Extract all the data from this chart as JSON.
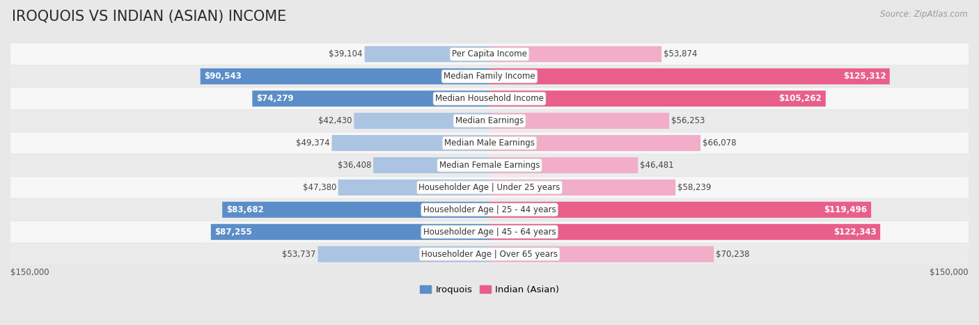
{
  "title": "IROQUOIS VS INDIAN (ASIAN) INCOME",
  "source": "Source: ZipAtlas.com",
  "categories": [
    "Per Capita Income",
    "Median Family Income",
    "Median Household Income",
    "Median Earnings",
    "Median Male Earnings",
    "Median Female Earnings",
    "Householder Age | Under 25 years",
    "Householder Age | 25 - 44 years",
    "Householder Age | 45 - 64 years",
    "Householder Age | Over 65 years"
  ],
  "iroquois_values": [
    39104,
    90543,
    74279,
    42430,
    49374,
    36408,
    47380,
    83682,
    87255,
    53737
  ],
  "indian_values": [
    53874,
    125312,
    105262,
    56253,
    66078,
    46481,
    58239,
    119496,
    122343,
    70238
  ],
  "iroquois_labels": [
    "$39,104",
    "$90,543",
    "$74,279",
    "$42,430",
    "$49,374",
    "$36,408",
    "$47,380",
    "$83,682",
    "$87,255",
    "$53,737"
  ],
  "indian_labels": [
    "$53,874",
    "$125,312",
    "$105,262",
    "$56,253",
    "$66,078",
    "$46,481",
    "$58,239",
    "$119,496",
    "$122,343",
    "$70,238"
  ],
  "iroquois_color_light": "#aac4e2",
  "iroquois_color_dark": "#5b8ec9",
  "indian_color_light": "#f2aec8",
  "indian_color_dark": "#e8608a",
  "max_value": 150000,
  "bg_color": "#e8e8e8",
  "row_bg_even": "#f7f7f7",
  "row_bg_odd": "#ebebeb",
  "bottom_label_left": "$150,000",
  "bottom_label_right": "$150,000",
  "legend_iroquois": "Iroquois",
  "legend_indian": "Indian (Asian)",
  "title_fontsize": 15,
  "label_fontsize": 8.5,
  "cat_fontsize": 8.5,
  "source_fontsize": 8.5,
  "iroquois_dark_threshold": 70000,
  "indian_dark_threshold": 100000
}
